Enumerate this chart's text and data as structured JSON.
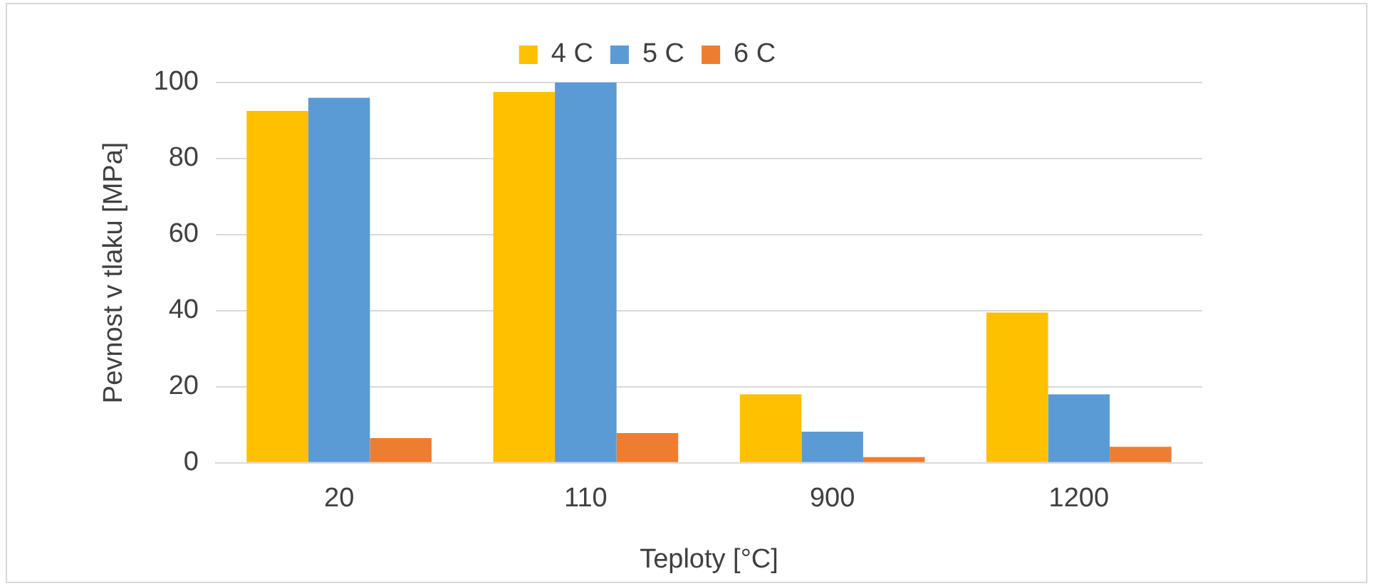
{
  "chart_data": {
    "type": "bar",
    "xlabel": "Teploty [°C]",
    "ylabel": "Pevnost v tlaku [MPa]",
    "categories": [
      "20",
      "110",
      "900",
      "1200"
    ],
    "series": [
      {
        "name": "4 C",
        "color": "#ffc000",
        "values": [
          92.5,
          97.5,
          18,
          39.5
        ]
      },
      {
        "name": "5 C",
        "color": "#5b9bd5",
        "values": [
          96,
          100,
          8.2,
          18
        ]
      },
      {
        "name": "6 C",
        "color": "#ed7d31",
        "values": [
          6.5,
          7.8,
          1.5,
          4.2
        ]
      }
    ],
    "ylim": [
      0,
      100
    ],
    "yticks": [
      0,
      20,
      40,
      60,
      80,
      100
    ],
    "grid": "y",
    "legend": "top"
  }
}
